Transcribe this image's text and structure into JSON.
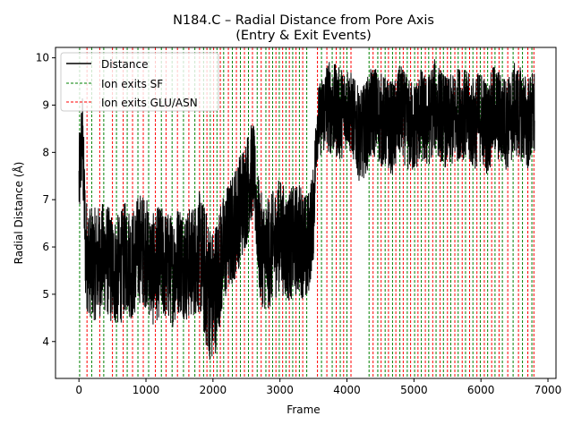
{
  "chart_data": {
    "type": "line",
    "title_line1": "N184.C – Radial Distance from Pore Axis",
    "title_line2": "(Entry & Exit Events)",
    "xlabel": "Frame",
    "ylabel": "Radial Distance (Å)",
    "xlim": [
      -350,
      7120
    ],
    "ylim": [
      3.22,
      10.22
    ],
    "xticks": [
      0,
      1000,
      2000,
      3000,
      4000,
      5000,
      6000,
      7000
    ],
    "yticks": [
      4,
      5,
      6,
      7,
      8,
      9,
      10
    ],
    "legend": {
      "placement": "top-left",
      "entries": [
        {
          "label": "Distance",
          "color": "#000000",
          "style": "solid"
        },
        {
          "label": "Ion exits SF",
          "color": "#008000",
          "style": "dashed"
        },
        {
          "label": "Ion exits GLU/ASN",
          "color": "#ff0000",
          "style": "dashed"
        }
      ]
    },
    "series": [
      {
        "name": "Distance",
        "color": "#000000",
        "x": [
          0,
          50,
          100,
          200,
          300,
          400,
          500,
          600,
          700,
          800,
          900,
          1000,
          1100,
          1200,
          1300,
          1400,
          1500,
          1600,
          1700,
          1800,
          1900,
          2000,
          2100,
          2200,
          2300,
          2400,
          2500,
          2600,
          2700,
          2800,
          2900,
          3000,
          3100,
          3200,
          3300,
          3400,
          3500,
          3550,
          3600,
          3700,
          3800,
          3900,
          4000,
          4100,
          4200,
          4300,
          4400,
          4500,
          4600,
          4700,
          4800,
          4900,
          5000,
          5100,
          5200,
          5300,
          5400,
          5500,
          5600,
          5700,
          5800,
          5900,
          6000,
          6100,
          6200,
          6300,
          6400,
          6500,
          6600,
          6700,
          6800
        ],
        "y": [
          7.3,
          8.4,
          5.9,
          5.6,
          5.7,
          5.8,
          5.5,
          5.5,
          5.8,
          5.6,
          6.0,
          5.9,
          5.5,
          5.7,
          5.6,
          5.5,
          5.8,
          5.6,
          5.7,
          5.9,
          5.3,
          4.9,
          5.6,
          6.1,
          6.4,
          6.8,
          7.2,
          7.7,
          6.0,
          5.8,
          6.0,
          6.3,
          6.0,
          6.1,
          6.2,
          5.9,
          6.7,
          8.6,
          8.7,
          9.0,
          8.9,
          8.8,
          9.0,
          8.7,
          8.3,
          8.6,
          8.9,
          8.7,
          8.6,
          8.5,
          8.9,
          8.6,
          8.5,
          8.8,
          8.6,
          9.0,
          8.8,
          8.6,
          8.7,
          8.9,
          8.7,
          8.6,
          8.8,
          8.5,
          8.9,
          8.7,
          8.6,
          8.9,
          8.8,
          8.6,
          8.8
        ],
        "noise_amplitude": [
          1.0,
          1.0,
          1.2,
          1.2,
          1.2,
          1.2,
          1.2,
          1.2,
          1.2,
          1.2,
          1.2,
          1.2,
          1.2,
          1.2,
          1.2,
          1.2,
          1.2,
          1.2,
          1.2,
          1.3,
          1.5,
          1.5,
          1.3,
          1.2,
          1.2,
          1.2,
          1.2,
          1.0,
          1.2,
          1.2,
          1.2,
          1.2,
          1.2,
          1.2,
          1.2,
          1.2,
          1.0,
          0.8,
          0.8,
          1.0,
          1.0,
          1.0,
          0.9,
          0.9,
          1.0,
          1.0,
          1.0,
          1.0,
          1.0,
          1.0,
          1.0,
          1.0,
          1.0,
          1.0,
          1.0,
          1.0,
          1.0,
          1.0,
          1.0,
          1.0,
          1.0,
          1.0,
          1.0,
          1.0,
          1.0,
          1.0,
          1.0,
          1.0,
          1.0,
          1.0,
          1.0
        ]
      }
    ],
    "events": {
      "sf_exits": [
        10,
        190,
        370,
        560,
        720,
        880,
        1040,
        1230,
        1390,
        1560,
        1730,
        1860,
        1960,
        2060,
        2160,
        2290,
        2410,
        2530,
        2660,
        2790,
        2890,
        2990,
        3090,
        3190,
        3290,
        3400,
        3620,
        3780,
        3900,
        4000,
        4330,
        4460,
        4570,
        4680,
        4790,
        4900,
        5010,
        5110,
        5220,
        5330,
        5440,
        5550,
        5660,
        5770,
        5880,
        5990,
        6100,
        6210,
        6320,
        6480,
        6620,
        6760
      ],
      "glu_asn_exits": [
        120,
        310,
        500,
        660,
        800,
        960,
        1140,
        1300,
        1470,
        1640,
        1800,
        1910,
        2010,
        2110,
        2230,
        2350,
        2470,
        2590,
        2720,
        2840,
        2940,
        3040,
        3140,
        3240,
        3340,
        3560,
        3700,
        3840,
        3950,
        4060,
        4390,
        4510,
        4620,
        4730,
        4840,
        4950,
        5060,
        5170,
        5280,
        5390,
        5500,
        5610,
        5720,
        5830,
        5940,
        6050,
        6160,
        6270,
        6400,
        6560,
        6700,
        6790
      ]
    }
  }
}
